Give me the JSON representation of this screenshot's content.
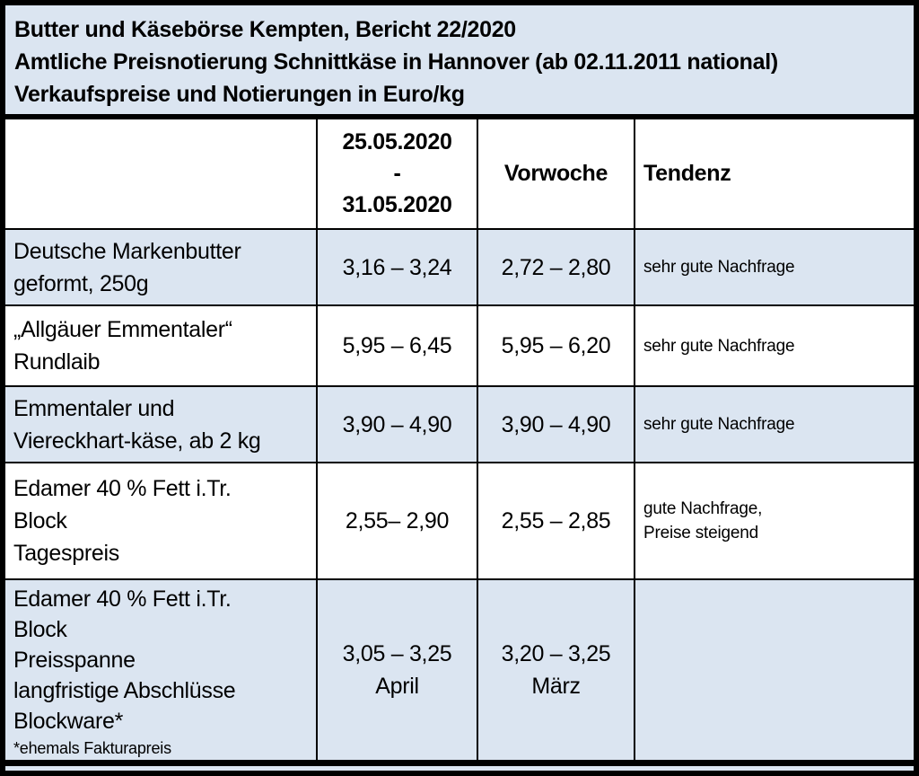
{
  "colors": {
    "row_shade": "#dbe5f1",
    "row_plain": "#ffffff",
    "border": "#000000",
    "text": "#000000"
  },
  "title_block": {
    "line1": "Butter und Käsebörse Kempten, Bericht 22/2020",
    "line2": "Amtliche Preisnotierung Schnittkäse in Hannover (ab 02.11.2011 national)",
    "line3": "Verkaufspreise und Notierungen in Euro/kg"
  },
  "table": {
    "header": {
      "product": "",
      "period": "25.05.2020\n-\n31.05.2020",
      "previous": "Vorwoche",
      "tendenz": "Tendenz"
    },
    "rows": [
      {
        "product": "Deutsche Markenbutter\ngeformt, 250g",
        "note": "",
        "current": "3,16 – 3,24",
        "previous": "2,72 – 2,80",
        "tendenz": "sehr gute Nachfrage"
      },
      {
        "product": "„Allgäuer Emmentaler“\nRundlaib",
        "note": "",
        "current": "5,95 – 6,45",
        "previous": "5,95 – 6,20",
        "tendenz": "sehr gute Nachfrage"
      },
      {
        "product": "Emmentaler und\nViereckhart-käse, ab 2 kg",
        "note": "",
        "current": "3,90 – 4,90",
        "previous": "3,90 – 4,90",
        "tendenz": "sehr gute Nachfrage"
      },
      {
        "product": "Edamer 40 % Fett i.Tr.\nBlock\nTagespreis",
        "note": "",
        "current": "2,55– 2,90",
        "previous": "2,55 – 2,85",
        "tendenz": "gute Nachfrage,\nPreise steigend"
      },
      {
        "product": "Edamer 40 % Fett i.Tr.\nBlock\nPreisspanne\nlangfristige Abschlüsse\nBlockware*",
        "note": "*ehemals Fakturapreis",
        "current": "3,05 – 3,25\nApril",
        "previous": "3,20 – 3,25\nMärz",
        "tendenz": ""
      }
    ]
  }
}
